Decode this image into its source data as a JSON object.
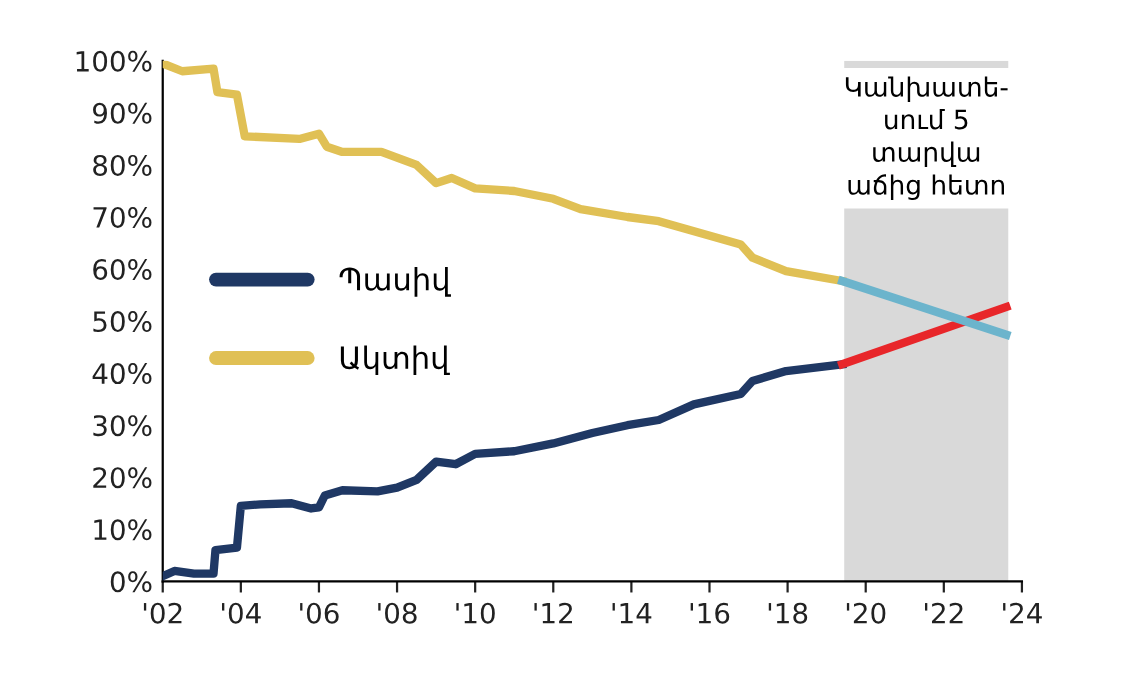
{
  "chart_data": {
    "type": "line",
    "xlim": [
      2002,
      2024
    ],
    "xticks": [
      {
        "value": 2002,
        "label": "'02"
      },
      {
        "value": 2004,
        "label": "'04"
      },
      {
        "value": 2006,
        "label": "'06"
      },
      {
        "value": 2008,
        "label": "'08"
      },
      {
        "value": 2010,
        "label": "'10"
      },
      {
        "value": 2012,
        "label": "'12"
      },
      {
        "value": 2014,
        "label": "'14"
      },
      {
        "value": 2016,
        "label": "'16"
      },
      {
        "value": 2018,
        "label": "'18"
      },
      {
        "value": 2020,
        "label": "'20"
      },
      {
        "value": 2022,
        "label": "'22"
      },
      {
        "value": 2024,
        "label": "'24"
      }
    ],
    "ylim": [
      0,
      100
    ],
    "yticks": [
      {
        "value": 0,
        "label": "0%"
      },
      {
        "value": 10,
        "label": "10%"
      },
      {
        "value": 20,
        "label": "20%"
      },
      {
        "value": 30,
        "label": "30%"
      },
      {
        "value": 40,
        "label": "40%"
      },
      {
        "value": 50,
        "label": "50%"
      },
      {
        "value": 60,
        "label": "60%"
      },
      {
        "value": 70,
        "label": "70%"
      },
      {
        "value": 80,
        "label": "80%"
      },
      {
        "value": 90,
        "label": "90%"
      },
      {
        "value": 100,
        "label": "100%"
      }
    ],
    "series": [
      {
        "name": "Պասիվ",
        "color": "#1f3864",
        "x": [
          2002.0,
          2002.3,
          2002.8,
          2003.3,
          2003.35,
          2003.9,
          2004.0,
          2004.5,
          2005.3,
          2005.8,
          2006.0,
          2006.15,
          2006.6,
          2007.5,
          2008.0,
          2008.5,
          2009.0,
          2009.5,
          2010.0,
          2011.0,
          2012.0,
          2012.5,
          2013.0,
          2013.9,
          2014.7,
          2015.6,
          2016.8,
          2017.1,
          2017.96,
          2019.4
        ],
        "values": [
          1,
          2,
          1.5,
          1.5,
          6,
          6.5,
          14.5,
          14.8,
          15,
          14,
          14.2,
          16.5,
          17.5,
          17.3,
          18,
          19.5,
          23,
          22.5,
          24.5,
          25,
          26.5,
          27.5,
          28.5,
          30,
          31,
          34,
          36,
          38.5,
          40.4,
          41.7
        ]
      },
      {
        "name": "Ակտիվ",
        "color": "#e0c055",
        "x": [
          2002.0,
          2002.5,
          2003.3,
          2003.4,
          2003.9,
          2004.1,
          2005.5,
          2006.0,
          2006.2,
          2006.6,
          2007.6,
          2008.5,
          2009.0,
          2009.4,
          2010.0,
          2011.0,
          2012.0,
          2012.7,
          2013.9,
          2014.7,
          2016.8,
          2017.1,
          2017.96,
          2019.4
        ],
        "values": [
          99.5,
          98,
          98.5,
          94,
          93.5,
          85.5,
          85,
          86,
          83.5,
          82.5,
          82.5,
          80,
          76.5,
          77.5,
          75.5,
          75,
          73.5,
          71.5,
          70,
          69.2,
          64.7,
          62.2,
          59.6,
          57.7
        ]
      },
      {
        "color": "#e8262a",
        "x": [
          2019.4,
          2023.6
        ],
        "values": [
          41.7,
          52.7
        ]
      },
      {
        "color": "#6cb4cc",
        "x": [
          2019.4,
          2023.6
        ],
        "values": [
          57.7,
          47.4
        ]
      }
    ],
    "bands": [
      {
        "axis": "x",
        "from": 2019.45,
        "to": 2023.65,
        "color": "#d9d9d9"
      }
    ],
    "annotations": [
      "Կանխատե-\nսում 5\nտարվա\nաճից հետո"
    ],
    "legend": "center left",
    "grid": false
  }
}
